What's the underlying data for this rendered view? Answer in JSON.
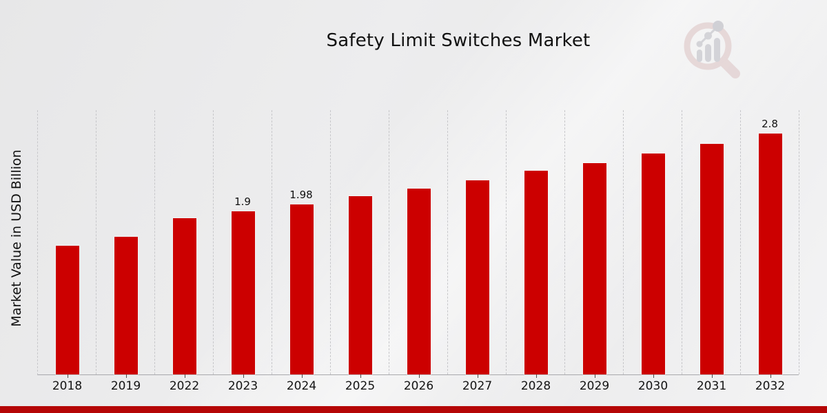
{
  "title": "Safety Limit Switches Market",
  "y_axis_label": "Market Value in USD Billion",
  "footer": {
    "strip_color": "#B50606"
  },
  "logo": {
    "name": "magnifier-bar-chart-watermark",
    "ring_color": "#dcc2c2",
    "glyph_color": "#babac2"
  },
  "chart_data": {
    "type": "bar",
    "title": "Safety Limit Switches Market",
    "xlabel": "",
    "ylabel": "Market Value in USD Billion",
    "categories": [
      "2018",
      "2019",
      "2022",
      "2023",
      "2024",
      "2025",
      "2026",
      "2027",
      "2028",
      "2029",
      "2030",
      "2031",
      "2032"
    ],
    "values": [
      1.5,
      1.6,
      1.82,
      1.9,
      1.98,
      2.07,
      2.16,
      2.26,
      2.37,
      2.46,
      2.57,
      2.68,
      2.8
    ],
    "data_labels": [
      "",
      "",
      "",
      "1.9",
      "1.98",
      "",
      "",
      "",
      "",
      "",
      "",
      "",
      "2.8"
    ],
    "bar_color": "#CC0000",
    "ylim": [
      0,
      3.08
    ],
    "grid": "vertical-dashed",
    "legend_position": "none",
    "background": "light-gray-gradient"
  }
}
